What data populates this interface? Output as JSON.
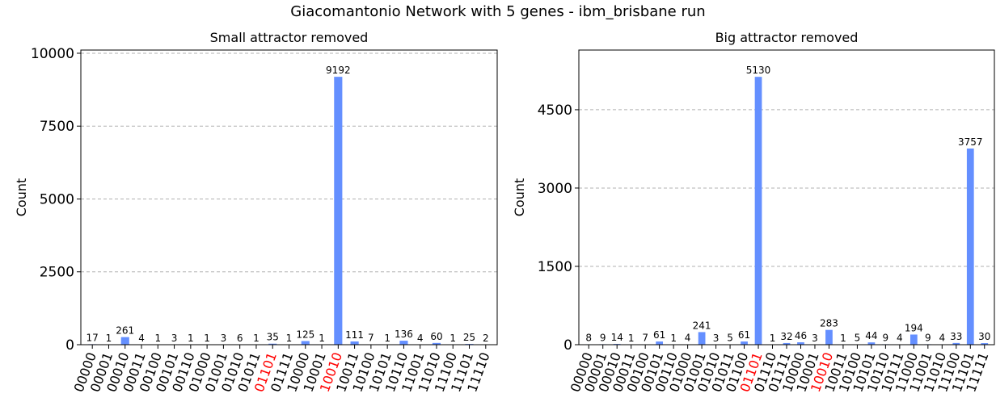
{
  "title": "Giacomantonio Network with 5 genes - ibm_brisbane run",
  "chart_data": [
    {
      "type": "bar",
      "title": "Small attractor removed",
      "ylabel": "Count",
      "color": "#648fff",
      "categories": [
        "00000",
        "00001",
        "00010",
        "00011",
        "00100",
        "00101",
        "00110",
        "01000",
        "01001",
        "01010",
        "01011",
        "01101",
        "01111",
        "10000",
        "10001",
        "10010",
        "10011",
        "10100",
        "10101",
        "10110",
        "11001",
        "11010",
        "11100",
        "11101",
        "11110"
      ],
      "values": [
        17,
        1,
        261,
        4,
        1,
        3,
        1,
        1,
        3,
        6,
        1,
        35,
        1,
        125,
        1,
        9192,
        111,
        7,
        1,
        136,
        4,
        60,
        1,
        25,
        2
      ],
      "ylim": [
        0,
        10110
      ],
      "yticks": [
        0,
        2500,
        5000,
        7500,
        10000
      ],
      "grid": true,
      "highlight_color": "#ff0000",
      "highlighted": [
        11,
        15
      ]
    },
    {
      "type": "bar",
      "title": "Big attractor removed",
      "ylabel": "Count",
      "color": "#648fff",
      "categories": [
        "00000",
        "00001",
        "00010",
        "00011",
        "00100",
        "00101",
        "00110",
        "01000",
        "01001",
        "01010",
        "01011",
        "01100",
        "01101",
        "01110",
        "01111",
        "10000",
        "10001",
        "10010",
        "10011",
        "10100",
        "10101",
        "10110",
        "10111",
        "11000",
        "11001",
        "11010",
        "11100",
        "11101",
        "11111"
      ],
      "values": [
        8,
        9,
        14,
        1,
        7,
        61,
        1,
        4,
        241,
        3,
        5,
        61,
        5130,
        1,
        32,
        46,
        3,
        283,
        1,
        5,
        44,
        9,
        4,
        194,
        9,
        4,
        33,
        3757,
        30
      ],
      "ylim": [
        0,
        5643
      ],
      "yticks": [
        0,
        1500,
        3000,
        4500
      ],
      "grid": true,
      "highlight_color": "#ff0000",
      "highlighted": [
        12,
        17
      ]
    }
  ]
}
